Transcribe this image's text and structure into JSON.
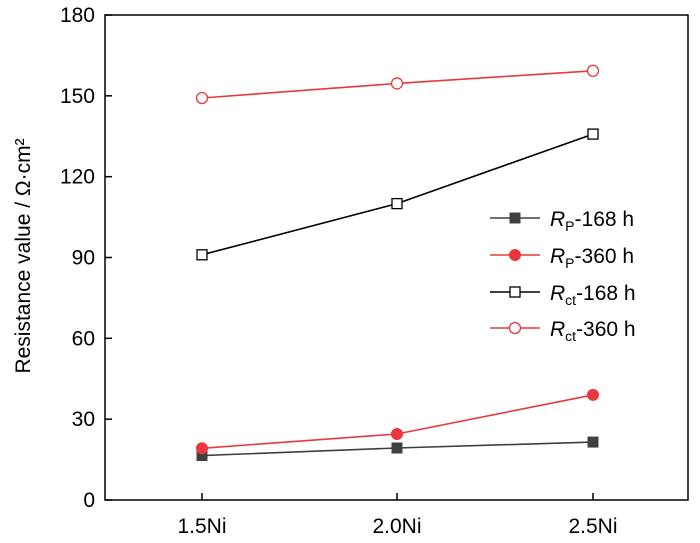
{
  "chart_data": {
    "type": "line",
    "categories": [
      "1.5Ni",
      "2.0Ni",
      "2.5Ni"
    ],
    "title": "",
    "xlabel": "",
    "ylabel": "Resistance value / Ω·cm²",
    "ylim": [
      0,
      180
    ],
    "yticks": [
      0,
      30,
      60,
      90,
      120,
      150,
      180
    ],
    "grid": false,
    "legend_position": "center-right",
    "series": [
      {
        "name": "RP-168 h",
        "name_main": "R",
        "name_sub": "P",
        "name_rest": "-168 h",
        "color": "#404040",
        "marker": "filled-square",
        "values": [
          16.5,
          19.3,
          21.5
        ]
      },
      {
        "name": "RP-360 h",
        "name_main": "R",
        "name_sub": "P",
        "name_rest": "-360 h",
        "color": "#e8383d",
        "marker": "filled-circle",
        "values": [
          19.2,
          24.5,
          39.0
        ]
      },
      {
        "name": "Rct-168 h",
        "name_main": "R",
        "name_sub": "ct",
        "name_rest": "-168 h",
        "color": "#000000",
        "marker": "open-square",
        "values": [
          91.0,
          110.0,
          135.8
        ]
      },
      {
        "name": "Rct-360 h",
        "name_main": "R",
        "name_sub": "ct",
        "name_rest": "-360 h",
        "color": "#e8383d",
        "marker": "open-circle",
        "values": [
          149.2,
          154.6,
          159.3
        ]
      }
    ]
  }
}
